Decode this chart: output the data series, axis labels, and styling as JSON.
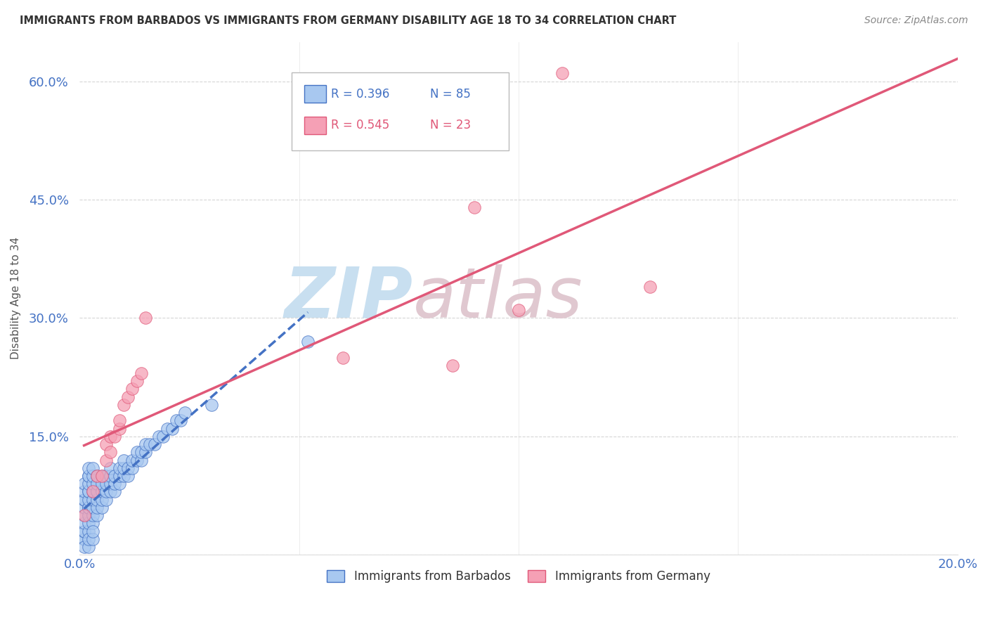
{
  "title": "IMMIGRANTS FROM BARBADOS VS IMMIGRANTS FROM GERMANY DISABILITY AGE 18 TO 34 CORRELATION CHART",
  "source": "Source: ZipAtlas.com",
  "ylabel": "Disability Age 18 to 34",
  "xlim": [
    0.0,
    0.2
  ],
  "ylim": [
    0.0,
    0.65
  ],
  "x_ticks": [
    0.0,
    0.05,
    0.1,
    0.15,
    0.2
  ],
  "x_tick_labels": [
    "0.0%",
    "",
    "",
    "",
    "20.0%"
  ],
  "y_ticks": [
    0.0,
    0.15,
    0.3,
    0.45,
    0.6
  ],
  "y_tick_labels": [
    "",
    "15.0%",
    "30.0%",
    "45.0%",
    "60.0%"
  ],
  "legend_r_barbados": "R = 0.396",
  "legend_n_barbados": "N = 85",
  "legend_r_germany": "R = 0.545",
  "legend_n_germany": "N = 23",
  "barbados_color": "#a8c8f0",
  "germany_color": "#f5a0b5",
  "barbados_line_color": "#4472c4",
  "germany_line_color": "#e05878",
  "watermark_zip": "ZIP",
  "watermark_atlas": "atlas",
  "watermark_color_zip": "#c8dff0",
  "watermark_color_atlas": "#e0c8d0",
  "background_color": "#ffffff",
  "grid_color": "#cccccc",
  "label_color": "#4472c4",
  "title_color": "#333333",
  "source_color": "#888888",
  "barbados_x": [
    0.001,
    0.001,
    0.001,
    0.001,
    0.001,
    0.001,
    0.001,
    0.001,
    0.001,
    0.001,
    0.001,
    0.002,
    0.002,
    0.002,
    0.002,
    0.002,
    0.002,
    0.002,
    0.002,
    0.002,
    0.002,
    0.002,
    0.002,
    0.003,
    0.003,
    0.003,
    0.003,
    0.003,
    0.003,
    0.003,
    0.003,
    0.004,
    0.004,
    0.004,
    0.004,
    0.004,
    0.004,
    0.005,
    0.005,
    0.005,
    0.005,
    0.005,
    0.006,
    0.006,
    0.006,
    0.006,
    0.007,
    0.007,
    0.007,
    0.007,
    0.008,
    0.008,
    0.008,
    0.009,
    0.009,
    0.009,
    0.01,
    0.01,
    0.01,
    0.011,
    0.011,
    0.012,
    0.012,
    0.013,
    0.013,
    0.014,
    0.014,
    0.015,
    0.015,
    0.016,
    0.017,
    0.018,
    0.019,
    0.02,
    0.021,
    0.022,
    0.023,
    0.024,
    0.03,
    0.052,
    0.001,
    0.002,
    0.002,
    0.003,
    0.003
  ],
  "barbados_y": [
    0.02,
    0.02,
    0.03,
    0.03,
    0.04,
    0.05,
    0.06,
    0.07,
    0.07,
    0.08,
    0.09,
    0.03,
    0.04,
    0.05,
    0.06,
    0.06,
    0.07,
    0.08,
    0.08,
    0.09,
    0.1,
    0.1,
    0.11,
    0.04,
    0.05,
    0.06,
    0.07,
    0.08,
    0.09,
    0.1,
    0.11,
    0.05,
    0.06,
    0.07,
    0.08,
    0.09,
    0.1,
    0.06,
    0.07,
    0.08,
    0.09,
    0.1,
    0.07,
    0.08,
    0.09,
    0.1,
    0.08,
    0.09,
    0.1,
    0.11,
    0.08,
    0.09,
    0.1,
    0.09,
    0.1,
    0.11,
    0.1,
    0.11,
    0.12,
    0.1,
    0.11,
    0.11,
    0.12,
    0.12,
    0.13,
    0.12,
    0.13,
    0.13,
    0.14,
    0.14,
    0.14,
    0.15,
    0.15,
    0.16,
    0.16,
    0.17,
    0.17,
    0.18,
    0.19,
    0.27,
    0.01,
    0.01,
    0.02,
    0.02,
    0.03
  ],
  "germany_x": [
    0.001,
    0.003,
    0.004,
    0.005,
    0.006,
    0.006,
    0.007,
    0.007,
    0.008,
    0.009,
    0.009,
    0.01,
    0.011,
    0.012,
    0.013,
    0.014,
    0.015,
    0.06,
    0.085,
    0.09,
    0.1,
    0.11,
    0.13
  ],
  "germany_y": [
    0.05,
    0.08,
    0.1,
    0.1,
    0.12,
    0.14,
    0.13,
    0.15,
    0.15,
    0.16,
    0.17,
    0.19,
    0.2,
    0.21,
    0.22,
    0.23,
    0.3,
    0.25,
    0.24,
    0.44,
    0.31,
    0.61,
    0.34
  ]
}
